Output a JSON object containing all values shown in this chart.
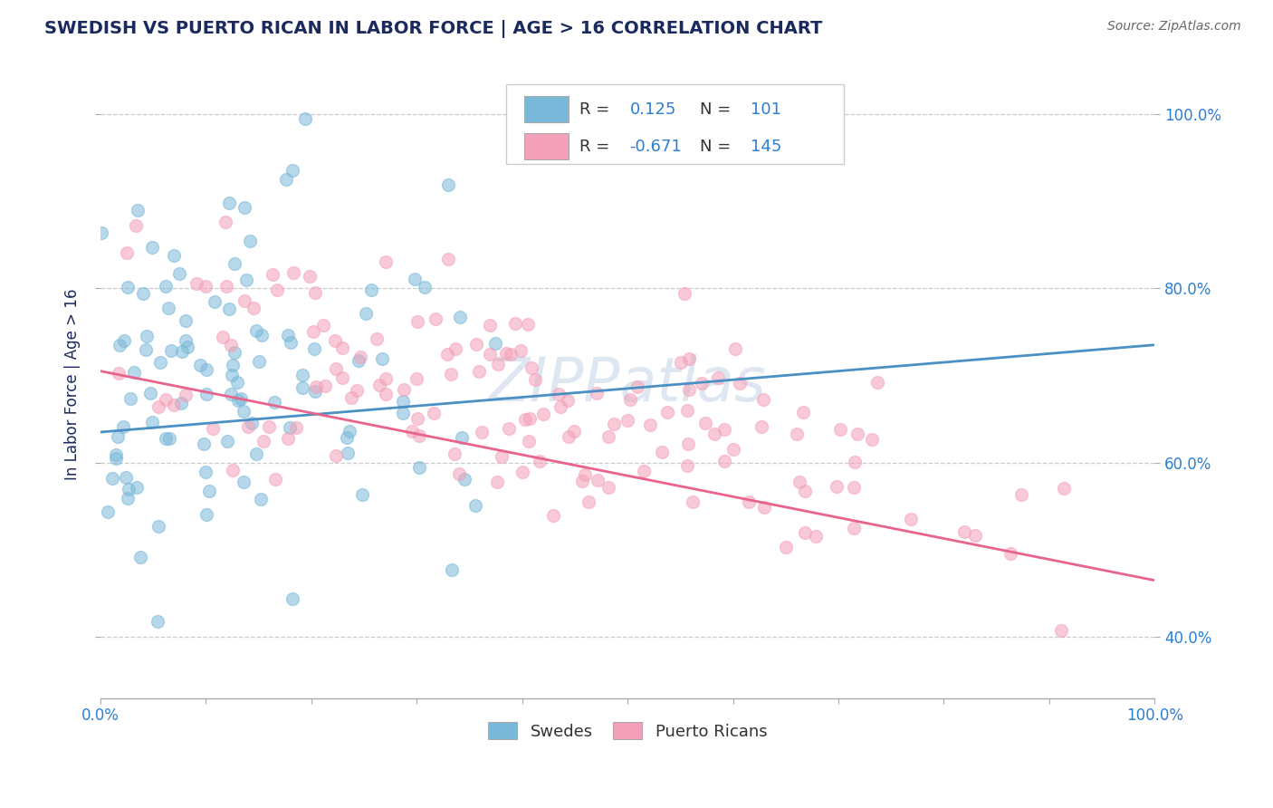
{
  "title": "SWEDISH VS PUERTO RICAN IN LABOR FORCE | AGE > 16 CORRELATION CHART",
  "source_text": "Source: ZipAtlas.com",
  "ylabel": "In Labor Force | Age > 16",
  "ytick_labels": [
    "40.0%",
    "60.0%",
    "80.0%",
    "100.0%"
  ],
  "ytick_values": [
    0.4,
    0.6,
    0.8,
    1.0
  ],
  "xlim": [
    0.0,
    1.0
  ],
  "ylim": [
    0.33,
    1.05
  ],
  "swedes_R": 0.125,
  "swedes_N": 101,
  "puerto_ricans_R": -0.671,
  "puerto_ricans_N": 145,
  "swedes_color": "#7ab8d9",
  "puerto_ricans_color": "#f4a0b8",
  "swedes_line_color": "#4a90c4",
  "puerto_ricans_line_color": "#e8648a",
  "background_color": "#ffffff",
  "grid_color": "#cccccc",
  "title_color": "#1a2a5e",
  "value_color": "#2a7fd4",
  "label_color": "#333333",
  "watermark_color": "#c8d8e8",
  "watermark_text": "ZIPPatlas",
  "seed": 17,
  "sw_line_x0": 0.0,
  "sw_line_y0": 0.635,
  "sw_line_x1": 1.0,
  "sw_line_y1": 0.735,
  "pr_line_x0": 0.0,
  "pr_line_y0": 0.705,
  "pr_line_x1": 1.0,
  "pr_line_y1": 0.465
}
